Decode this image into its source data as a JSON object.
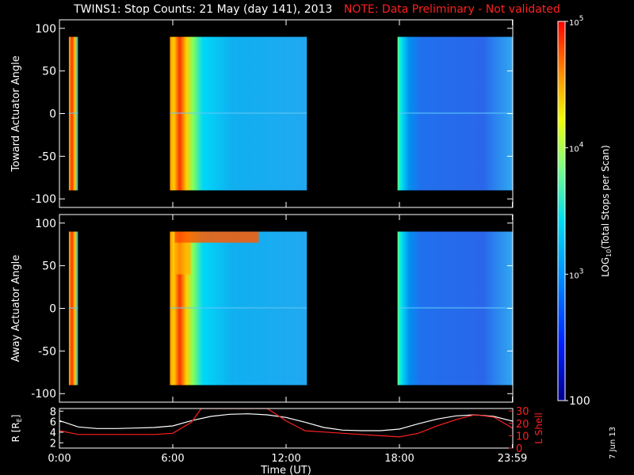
{
  "title": "TWINS1: Stop Counts: 21 May (day 141), 2013",
  "note": "NOTE: Data Preliminary - Not validated",
  "stamp": "7 Jun 13",
  "chart_data": [
    {
      "type": "heatmap",
      "name": "toward-actuator-panel",
      "ylabel": "Toward Actuator Angle",
      "yticks": [
        100,
        50,
        0,
        -50,
        -100
      ],
      "ylim": [
        -110,
        110
      ],
      "angle_range": [
        -90,
        90
      ],
      "xlim_hours": [
        0,
        24
      ],
      "data_intervals_hours": [
        [
          0.5,
          0.98
        ],
        [
          5.85,
          13.1
        ],
        [
          17.9,
          24.0
        ]
      ],
      "colorscale_range": [
        100,
        100000
      ]
    },
    {
      "type": "heatmap",
      "name": "away-actuator-panel",
      "ylabel": "Away Actuator Angle",
      "yticks": [
        100,
        50,
        0,
        -50,
        -100
      ],
      "ylim": [
        -110,
        110
      ],
      "angle_range": [
        -90,
        90
      ],
      "xlim_hours": [
        0,
        24
      ],
      "data_intervals_hours": [
        [
          0.5,
          0.98
        ],
        [
          5.85,
          13.1
        ],
        [
          17.9,
          24.0
        ]
      ],
      "colorscale_range": [
        100,
        100000
      ]
    },
    {
      "type": "line",
      "name": "orbit-panel",
      "ylabel_left": "R [R",
      "ylabel_left_sub": "E",
      "ylabel_left_end": "]",
      "ylabel_right": "L Shell",
      "yticks_left": [
        2,
        4,
        6,
        8
      ],
      "ylim_left": [
        1,
        8.5
      ],
      "yticks_right": [
        0,
        10,
        20,
        30
      ],
      "ylim_right": [
        0,
        32
      ],
      "xlabel": "Time (UT)",
      "xticks": [
        "0:00",
        "6:00",
        "12:00",
        "18:00",
        "23:59"
      ],
      "xtick_hours": [
        0,
        6,
        12,
        18,
        23.98
      ],
      "series": [
        {
          "color": "#ffffff",
          "x": [
            0,
            1,
            2,
            3,
            4,
            5,
            6,
            7,
            8,
            9,
            10,
            11,
            12,
            13,
            14,
            15,
            16,
            17,
            18,
            19,
            20,
            21,
            22,
            23,
            24
          ],
          "y": [
            6.2,
            5.0,
            4.7,
            4.7,
            4.8,
            4.9,
            5.2,
            6.2,
            7.0,
            7.4,
            7.5,
            7.3,
            6.8,
            5.9,
            4.9,
            4.4,
            4.3,
            4.3,
            4.6,
            5.6,
            6.5,
            7.1,
            7.3,
            7.0,
            6.1
          ]
        },
        {
          "color": "#ff2020",
          "x": [
            0,
            1,
            2,
            3,
            4,
            5,
            6,
            7,
            7.5,
            11.0,
            12,
            13,
            14,
            15,
            16,
            17,
            18,
            19,
            20,
            21,
            22,
            23,
            24
          ],
          "y": [
            14,
            11,
            11,
            11,
            11,
            11,
            12,
            21,
            32,
            32,
            22,
            14,
            13,
            12,
            11,
            10,
            9,
            12,
            18,
            23,
            27,
            25,
            16
          ]
        }
      ]
    },
    {
      "type": "colorbar",
      "name": "count-colorbar",
      "label": "LOG10(Total Stops per Scan)",
      "label_pre": "LOG",
      "label_sub": "10",
      "label_post": "(Total Stops per Scan)",
      "range": [
        100,
        100000
      ],
      "ticks": [
        {
          "value": 100000,
          "base": "10",
          "exp": "5"
        },
        {
          "value": 10000,
          "base": "10",
          "exp": "4"
        },
        {
          "value": 1000,
          "base": "10",
          "exp": "3"
        },
        {
          "value": 100,
          "base": "100",
          "exp": ""
        }
      ]
    }
  ]
}
